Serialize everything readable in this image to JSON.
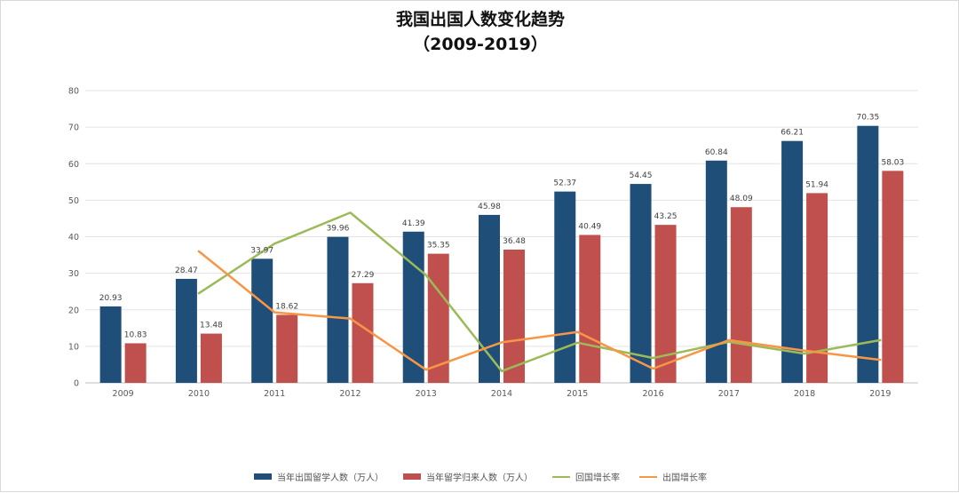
{
  "chart_data": {
    "type": "bar",
    "title": "我国出国人数变化趋势",
    "subtitle": "（2009-2019）",
    "categories": [
      "2009",
      "2010",
      "2011",
      "2012",
      "2013",
      "2014",
      "2015",
      "2016",
      "2017",
      "2018",
      "2019"
    ],
    "ylim": [
      0,
      80
    ],
    "yticks": [
      0,
      10,
      20,
      30,
      40,
      50,
      60,
      70,
      80
    ],
    "grid": true,
    "legend_position": "bottom",
    "bar_series": [
      {
        "name": "当年出国留学人数（万人）",
        "color": "#1f4e79",
        "values": [
          20.93,
          28.47,
          33.97,
          39.96,
          41.39,
          45.98,
          52.37,
          54.45,
          60.84,
          66.21,
          70.35
        ],
        "labels": [
          "20.93",
          "28.47",
          "33.97",
          "39.96",
          "41.39",
          "45.98",
          "52.37",
          "54.45",
          "60.84",
          "66.21",
          "70.35"
        ]
      },
      {
        "name": "当年留学归来人数（万人）",
        "color": "#c0504d",
        "values": [
          10.83,
          13.48,
          18.62,
          27.29,
          35.35,
          36.48,
          40.49,
          43.25,
          48.09,
          51.94,
          58.03
        ],
        "labels": [
          "10.83",
          "13.48",
          "18.62",
          "27.29",
          "35.35",
          "36.48",
          "40.49",
          "43.25",
          "48.09",
          "51.94",
          "58.03"
        ]
      }
    ],
    "line_series": [
      {
        "name": "回国增长率",
        "color": "#9bbb59",
        "values": [
          null,
          24.5,
          38.1,
          46.6,
          29.5,
          3.2,
          11.0,
          6.8,
          11.2,
          8.0,
          11.7
        ]
      },
      {
        "name": "出国增长率",
        "color": "#f79646",
        "values": [
          null,
          36.0,
          19.3,
          17.6,
          3.6,
          11.1,
          13.9,
          3.9,
          11.7,
          8.8,
          6.3
        ]
      }
    ]
  }
}
